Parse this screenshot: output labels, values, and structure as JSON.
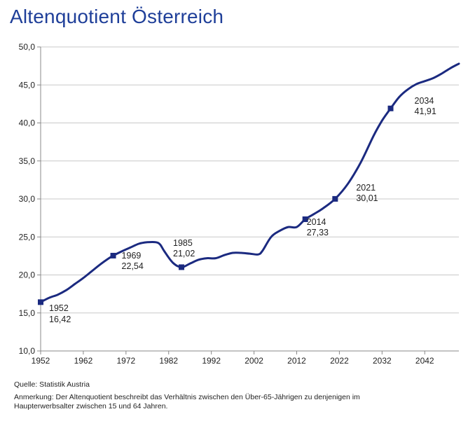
{
  "title": "Altenquotient Österreich",
  "source": "Quelle: Statistik Austria",
  "remark": "Anmerkung:  Der Altenquotient beschreibt das Verhältnis zwischen den Über-65-Jährigen zu denjenigen im Haupterwerbsalter zwischen 15 und 64 Jahren.",
  "colors": {
    "line": "#1b2a80",
    "title": "#1f3f99",
    "grid": "#c8c8c8"
  },
  "chart_data": {
    "type": "line",
    "title": "Altenquotient Österreich",
    "xlabel": "",
    "ylabel": "",
    "xlim": [
      1952,
      2050
    ],
    "ylim": [
      10,
      50
    ],
    "grid": "horizontal",
    "x_ticks": [
      "1952",
      "1962",
      "1972",
      "1982",
      "1992",
      "2002",
      "2012",
      "2022",
      "2032",
      "2042"
    ],
    "y_ticks": [
      "10,0",
      "15,0",
      "20,0",
      "25,0",
      "30,0",
      "35,0",
      "40,0",
      "45,0",
      "50,0"
    ],
    "series": [
      {
        "x": [
          1952,
          1954,
          1956,
          1958,
          1960,
          1962,
          1964,
          1966,
          1968,
          1969,
          1971,
          1973,
          1975,
          1977,
          1979,
          1980,
          1981,
          1983,
          1985,
          1987,
          1989,
          1991,
          1993,
          1995,
          1997,
          1999,
          2001,
          2003,
          2004,
          2006,
          2008,
          2010,
          2012,
          2014,
          2016,
          2018,
          2021,
          2024,
          2027,
          2030,
          2032,
          2034,
          2036,
          2038,
          2040,
          2042,
          2044,
          2046,
          2048,
          2050
        ],
        "values": [
          16.42,
          17.0,
          17.4,
          18.0,
          18.8,
          19.6,
          20.5,
          21.4,
          22.2,
          22.54,
          23.1,
          23.6,
          24.1,
          24.3,
          24.3,
          24.0,
          23.1,
          21.6,
          21.02,
          21.5,
          22.0,
          22.2,
          22.2,
          22.6,
          22.9,
          22.9,
          22.8,
          22.7,
          23.2,
          25.0,
          25.8,
          26.3,
          26.3,
          27.33,
          28.0,
          28.7,
          30.01,
          32.0,
          34.8,
          38.3,
          40.3,
          41.91,
          43.4,
          44.4,
          45.1,
          45.5,
          45.9,
          46.5,
          47.2,
          47.8
        ]
      }
    ],
    "markers": [
      {
        "x": 1952,
        "y": 16.42,
        "year": "1952",
        "value": "16,42"
      },
      {
        "x": 1969,
        "y": 22.54,
        "year": "1969",
        "value": "22,54"
      },
      {
        "x": 1985,
        "y": 21.02,
        "year": "1985",
        "value": "21,02"
      },
      {
        "x": 2014,
        "y": 27.33,
        "year": "2014",
        "value": "27,33"
      },
      {
        "x": 2021,
        "y": 30.01,
        "year": "2021",
        "value": "30,01"
      },
      {
        "x": 2034,
        "y": 41.91,
        "year": "2034",
        "value": "41,91"
      }
    ]
  }
}
